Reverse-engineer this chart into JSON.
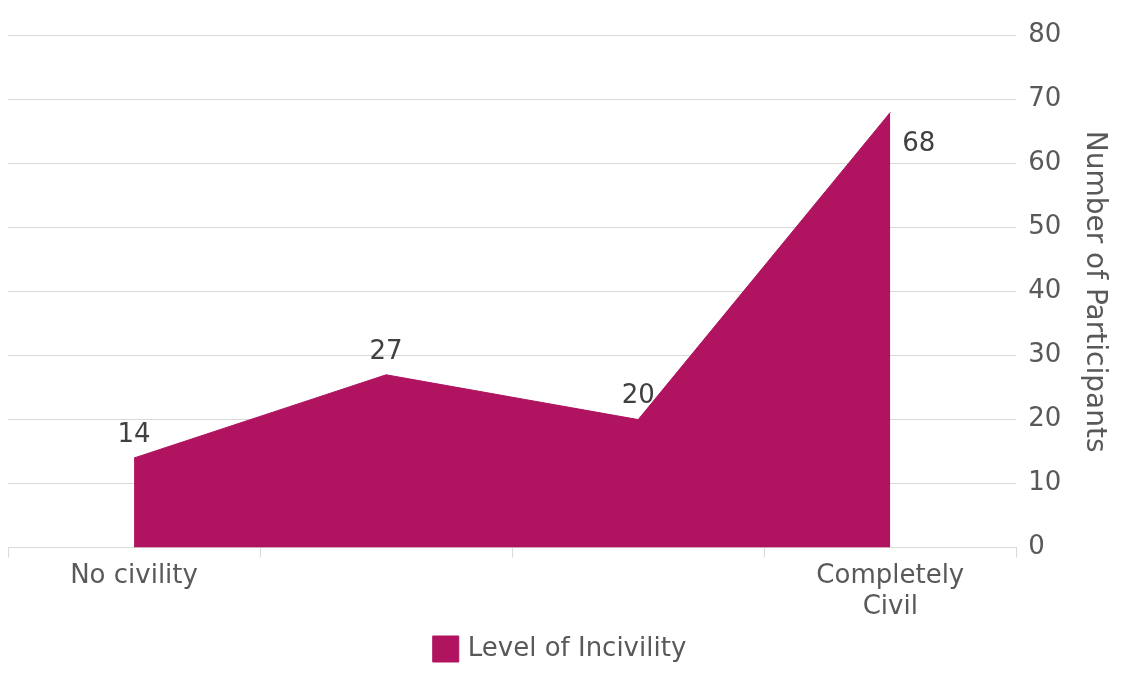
{
  "chart_data": {
    "type": "area",
    "categories": [
      "No civility",
      null,
      null,
      "Completely Civil"
    ],
    "series": [
      {
        "name": "Level of Incivility",
        "color": "#b0135f",
        "values": [
          14,
          27,
          20,
          68
        ]
      }
    ],
    "ylabel": "Number of Participants",
    "ylim": [
      0,
      80
    ],
    "yticks": [
      0,
      10,
      20,
      30,
      40,
      50,
      60,
      70,
      80
    ],
    "grid": "y",
    "legend": "bottom",
    "data_labels": true
  }
}
